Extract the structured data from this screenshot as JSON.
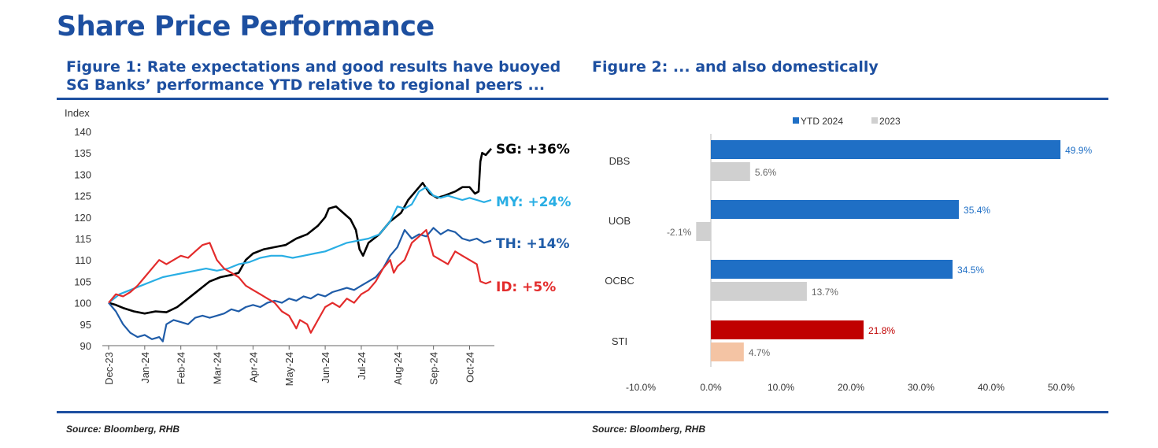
{
  "page": {
    "title": "Share Price Performance",
    "fig1_title": "Figure 1: Rate expectations and good results have buoyed SG Banks’ performance YTD relative to regional peers ...",
    "fig2_title": "Figure 2: ... and also domestically",
    "source_1": "Source: Bloomberg, RHB",
    "source_2": "Source: Bloomberg, RHB"
  },
  "chart_data": [
    {
      "type": "line",
      "title": "Figure 1: Rate expectations and good results have buoyed SG Banks’ performance YTD relative to regional peers ...",
      "ylabel": "Index",
      "xlabel": "",
      "ylim": [
        90,
        140
      ],
      "yticks": [
        90,
        95,
        100,
        105,
        110,
        115,
        120,
        125,
        130,
        135,
        140
      ],
      "x_tick_labels": [
        "Dec-23",
        "Jan-24",
        "Feb-24",
        "Mar-24",
        "Apr-24",
        "May-24",
        "Jun-24",
        "Jul-24",
        "Aug-24",
        "Sep-24",
        "Oct-24"
      ],
      "x_range_months": [
        0,
        10.6
      ],
      "grid": false,
      "series": [
        {
          "name": "SG",
          "label": "SG: +36%",
          "color": "#000000",
          "points": [
            [
              0,
              100
            ],
            [
              0.2,
              99.5
            ],
            [
              0.4,
              98.8
            ],
            [
              0.7,
              98
            ],
            [
              1,
              97.5
            ],
            [
              1.3,
              98
            ],
            [
              1.6,
              97.8
            ],
            [
              1.9,
              99
            ],
            [
              2.2,
              101
            ],
            [
              2.5,
              103
            ],
            [
              2.8,
              105
            ],
            [
              3.1,
              106
            ],
            [
              3.4,
              106.5
            ],
            [
              3.6,
              107
            ],
            [
              3.8,
              110
            ],
            [
              4.0,
              111.5
            ],
            [
              4.3,
              112.5
            ],
            [
              4.6,
              113
            ],
            [
              4.9,
              113.5
            ],
            [
              5.2,
              115
            ],
            [
              5.5,
              116
            ],
            [
              5.8,
              118
            ],
            [
              6.0,
              120
            ],
            [
              6.1,
              122
            ],
            [
              6.3,
              122.5
            ],
            [
              6.5,
              121
            ],
            [
              6.7,
              119.5
            ],
            [
              6.85,
              117
            ],
            [
              6.95,
              112.5
            ],
            [
              7.05,
              111
            ],
            [
              7.2,
              114
            ],
            [
              7.5,
              116
            ],
            [
              7.8,
              119
            ],
            [
              8.1,
              121
            ],
            [
              8.3,
              124
            ],
            [
              8.5,
              126
            ],
            [
              8.7,
              128
            ],
            [
              8.9,
              125.5
            ],
            [
              9.1,
              124.5
            ],
            [
              9.3,
              125
            ],
            [
              9.6,
              126
            ],
            [
              9.8,
              127
            ],
            [
              10.0,
              127
            ],
            [
              10.15,
              125.5
            ],
            [
              10.25,
              126
            ],
            [
              10.3,
              133
            ],
            [
              10.35,
              135
            ],
            [
              10.45,
              134.5
            ],
            [
              10.6,
              136
            ]
          ]
        },
        {
          "name": "MY",
          "label": "MY: +24%",
          "color": "#29aee4",
          "points": [
            [
              0,
              100
            ],
            [
              0.3,
              102
            ],
            [
              0.6,
              103
            ],
            [
              0.9,
              104
            ],
            [
              1.2,
              105
            ],
            [
              1.5,
              106
            ],
            [
              1.8,
              106.5
            ],
            [
              2.1,
              107
            ],
            [
              2.4,
              107.5
            ],
            [
              2.7,
              108
            ],
            [
              3.0,
              107.5
            ],
            [
              3.3,
              108
            ],
            [
              3.6,
              109
            ],
            [
              3.9,
              109.5
            ],
            [
              4.2,
              110.5
            ],
            [
              4.5,
              111
            ],
            [
              4.8,
              111
            ],
            [
              5.1,
              110.5
            ],
            [
              5.4,
              111
            ],
            [
              5.7,
              111.5
            ],
            [
              6.0,
              112
            ],
            [
              6.3,
              113
            ],
            [
              6.6,
              114
            ],
            [
              6.9,
              114.5
            ],
            [
              7.2,
              115
            ],
            [
              7.5,
              116
            ],
            [
              7.8,
              119
            ],
            [
              8.0,
              122.5
            ],
            [
              8.2,
              122
            ],
            [
              8.4,
              123
            ],
            [
              8.6,
              126
            ],
            [
              8.8,
              127
            ],
            [
              9.0,
              125
            ],
            [
              9.2,
              124.5
            ],
            [
              9.4,
              125
            ],
            [
              9.6,
              124.5
            ],
            [
              9.8,
              124
            ],
            [
              10.0,
              124.5
            ],
            [
              10.2,
              124
            ],
            [
              10.4,
              123.5
            ],
            [
              10.6,
              124
            ]
          ]
        },
        {
          "name": "TH",
          "label": "TH: +14%",
          "color": "#1f5ca8",
          "points": [
            [
              0,
              100
            ],
            [
              0.2,
              98
            ],
            [
              0.4,
              95
            ],
            [
              0.6,
              93
            ],
            [
              0.8,
              92
            ],
            [
              1.0,
              92.5
            ],
            [
              1.2,
              91.5
            ],
            [
              1.4,
              92
            ],
            [
              1.5,
              91
            ],
            [
              1.6,
              95
            ],
            [
              1.8,
              96
            ],
            [
              2.0,
              95.5
            ],
            [
              2.2,
              95
            ],
            [
              2.4,
              96.5
            ],
            [
              2.6,
              97
            ],
            [
              2.8,
              96.5
            ],
            [
              3.0,
              97
            ],
            [
              3.2,
              97.5
            ],
            [
              3.4,
              98.5
            ],
            [
              3.6,
              98
            ],
            [
              3.8,
              99
            ],
            [
              4.0,
              99.5
            ],
            [
              4.2,
              99
            ],
            [
              4.4,
              100
            ],
            [
              4.6,
              100.5
            ],
            [
              4.8,
              100
            ],
            [
              5.0,
              101
            ],
            [
              5.2,
              100.5
            ],
            [
              5.4,
              101.5
            ],
            [
              5.6,
              101
            ],
            [
              5.8,
              102
            ],
            [
              6.0,
              101.5
            ],
            [
              6.2,
              102.5
            ],
            [
              6.4,
              103
            ],
            [
              6.6,
              103.5
            ],
            [
              6.8,
              103
            ],
            [
              7.0,
              104
            ],
            [
              7.2,
              105
            ],
            [
              7.4,
              106
            ],
            [
              7.6,
              108
            ],
            [
              7.8,
              111
            ],
            [
              8.0,
              113
            ],
            [
              8.2,
              117
            ],
            [
              8.4,
              115
            ],
            [
              8.6,
              116
            ],
            [
              8.8,
              115.5
            ],
            [
              9.0,
              117.5
            ],
            [
              9.2,
              116
            ],
            [
              9.4,
              117
            ],
            [
              9.6,
              116.5
            ],
            [
              9.8,
              115
            ],
            [
              10.0,
              114.5
            ],
            [
              10.2,
              115
            ],
            [
              10.4,
              114
            ],
            [
              10.6,
              114.5
            ]
          ]
        },
        {
          "name": "ID",
          "label": "ID: +5%",
          "color": "#e32c2c",
          "points": [
            [
              0,
              100
            ],
            [
              0.2,
              102
            ],
            [
              0.4,
              101.5
            ],
            [
              0.6,
              102.5
            ],
            [
              0.8,
              104
            ],
            [
              1.0,
              106
            ],
            [
              1.2,
              108
            ],
            [
              1.4,
              110
            ],
            [
              1.6,
              109
            ],
            [
              1.8,
              110
            ],
            [
              2.0,
              111
            ],
            [
              2.2,
              110.5
            ],
            [
              2.4,
              112
            ],
            [
              2.6,
              113.5
            ],
            [
              2.8,
              114
            ],
            [
              3.0,
              110
            ],
            [
              3.2,
              108
            ],
            [
              3.4,
              107
            ],
            [
              3.6,
              106
            ],
            [
              3.8,
              104
            ],
            [
              4.0,
              103
            ],
            [
              4.2,
              102
            ],
            [
              4.4,
              101
            ],
            [
              4.6,
              100
            ],
            [
              4.8,
              98
            ],
            [
              5.0,
              97
            ],
            [
              5.1,
              95.5
            ],
            [
              5.2,
              94
            ],
            [
              5.3,
              96
            ],
            [
              5.5,
              95
            ],
            [
              5.6,
              93
            ],
            [
              5.8,
              96
            ],
            [
              6.0,
              99
            ],
            [
              6.2,
              100
            ],
            [
              6.4,
              99
            ],
            [
              6.6,
              101
            ],
            [
              6.8,
              100
            ],
            [
              7.0,
              102
            ],
            [
              7.2,
              103
            ],
            [
              7.4,
              105
            ],
            [
              7.6,
              108
            ],
            [
              7.8,
              110
            ],
            [
              7.9,
              107
            ],
            [
              8.0,
              108.5
            ],
            [
              8.2,
              110
            ],
            [
              8.4,
              114
            ],
            [
              8.6,
              115.5
            ],
            [
              8.8,
              117
            ],
            [
              9.0,
              111
            ],
            [
              9.2,
              110
            ],
            [
              9.4,
              109
            ],
            [
              9.6,
              112
            ],
            [
              9.8,
              111
            ],
            [
              10.0,
              110
            ],
            [
              10.2,
              109
            ],
            [
              10.3,
              105
            ],
            [
              10.45,
              104.5
            ],
            [
              10.6,
              105
            ]
          ]
        }
      ]
    },
    {
      "type": "bar",
      "orientation": "horizontal",
      "title": "Figure 2: ... and also domestically",
      "categories": [
        "DBS",
        "UOB",
        "OCBC",
        "STI"
      ],
      "xlim": [
        -10,
        50
      ],
      "xticks": [
        "-10.0%",
        "0.0%",
        "10.0%",
        "20.0%",
        "30.0%",
        "40.0%",
        "50.0%"
      ],
      "legend_position": "top-center",
      "series": [
        {
          "name": "YTD 2024",
          "color": "#1f6fc5",
          "sti_color": "#c00000",
          "values": [
            49.9,
            35.4,
            34.5,
            21.8
          ],
          "labels": [
            "49.9%",
            "35.4%",
            "34.5%",
            "21.8%"
          ]
        },
        {
          "name": "2023",
          "color": "#d0d0d0",
          "sti_color": "#f4c4a4",
          "values": [
            5.6,
            -2.1,
            13.7,
            4.7
          ],
          "labels": [
            "5.6%",
            "-2.1%",
            "13.7%",
            "4.7%"
          ]
        }
      ]
    }
  ]
}
